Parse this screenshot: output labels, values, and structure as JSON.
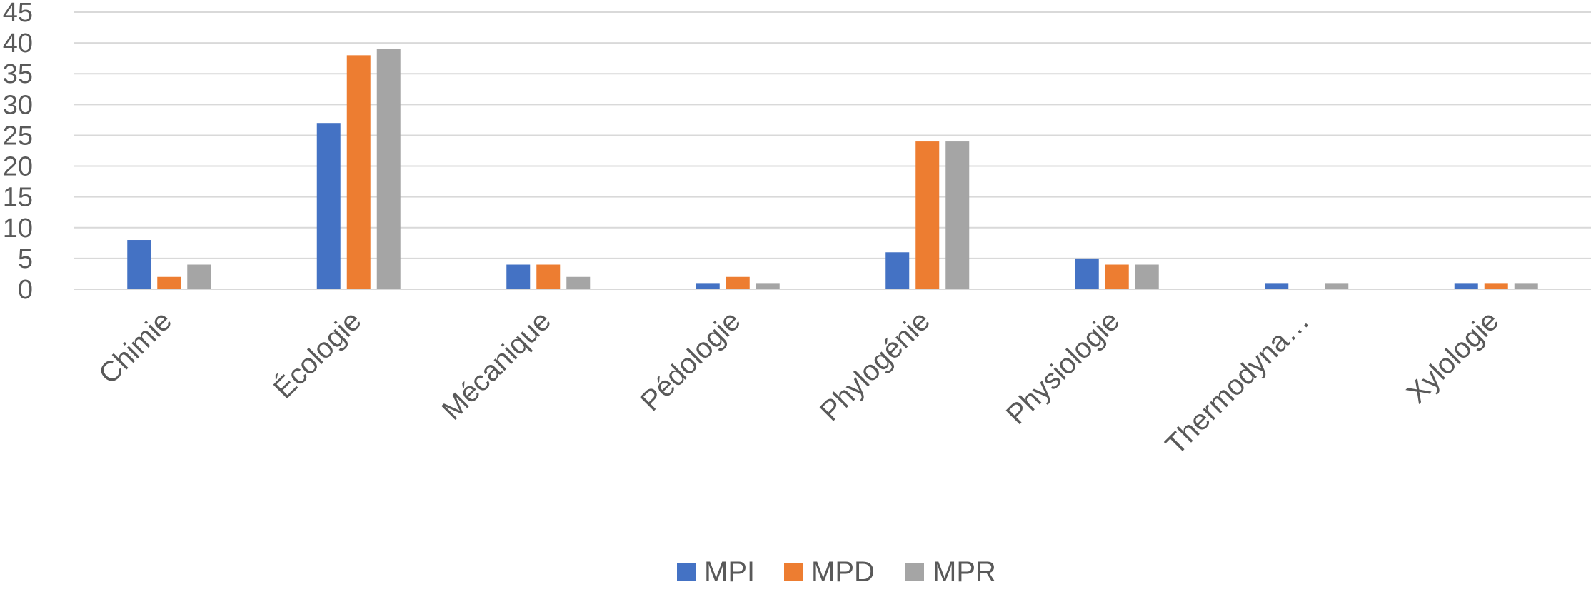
{
  "chart_data": {
    "type": "bar",
    "title": "",
    "xlabel": "",
    "ylabel": "",
    "ylim": [
      0,
      45
    ],
    "yticks": [
      0,
      5,
      10,
      15,
      20,
      25,
      30,
      35,
      40,
      45
    ],
    "grid": true,
    "legend_position": "bottom",
    "categories": [
      "Chimie",
      "Écologie",
      "Mécanique",
      "Pédologie",
      "Phylogénie",
      "Physiologie",
      "Thermodyna…",
      "Xylologie"
    ],
    "series": [
      {
        "name": "MPI",
        "color": "#4472c4",
        "values": [
          8,
          27,
          4,
          1,
          6,
          5,
          1,
          1
        ]
      },
      {
        "name": "MPD",
        "color": "#ed7d31",
        "values": [
          2,
          38,
          4,
          2,
          24,
          4,
          0,
          1
        ]
      },
      {
        "name": "MPR",
        "color": "#a5a5a5",
        "values": [
          4,
          39,
          2,
          1,
          24,
          4,
          1,
          1
        ]
      }
    ]
  }
}
